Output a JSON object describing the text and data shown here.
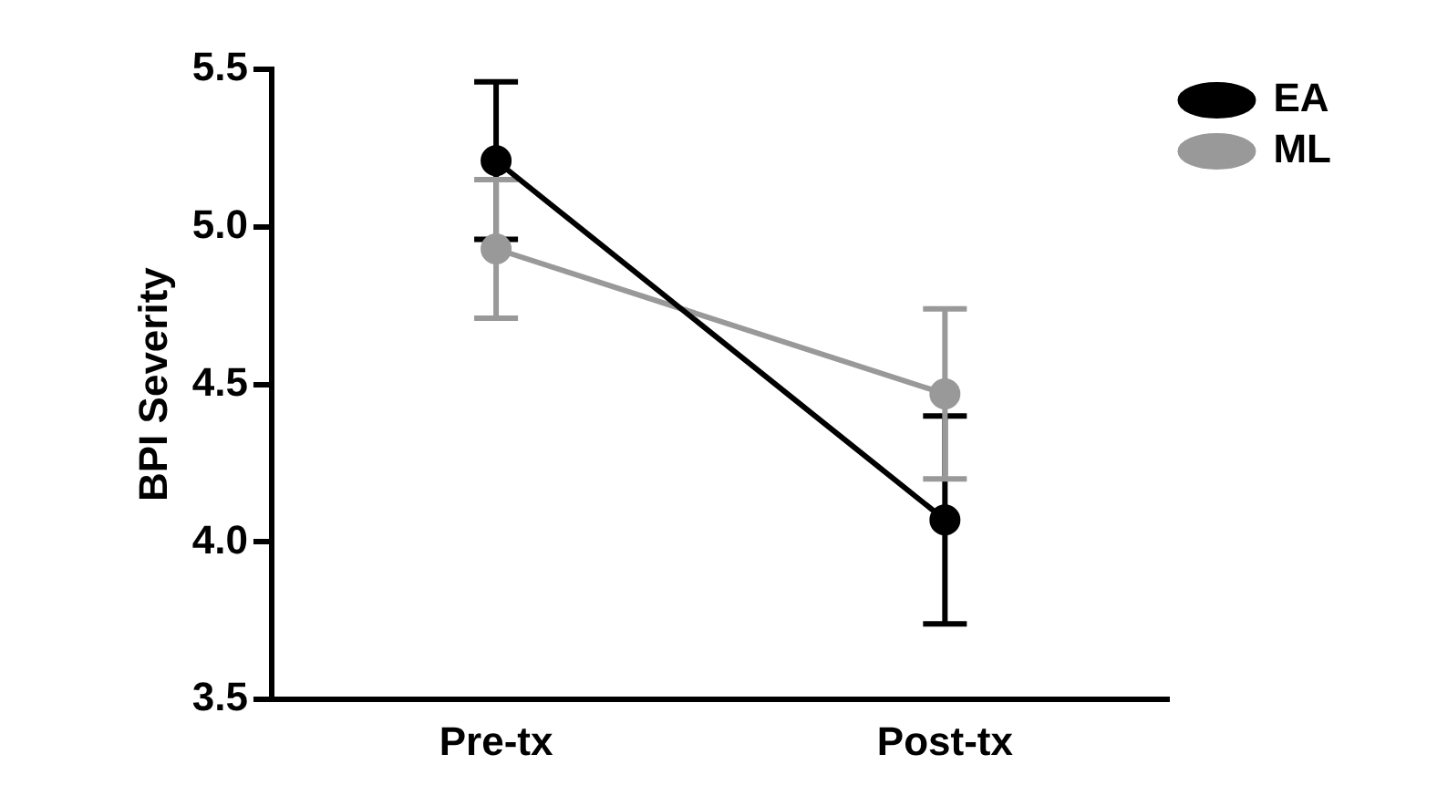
{
  "chart_data": {
    "type": "line",
    "ylabel": "BPI Severity",
    "categories": [
      "Pre-tx",
      "Post-tx"
    ],
    "series": [
      {
        "name": "EA",
        "color": "#000000",
        "values": [
          5.21,
          4.07
        ],
        "errors": [
          0.25,
          0.33
        ]
      },
      {
        "name": "ML",
        "color": "#999999",
        "values": [
          4.93,
          4.47
        ],
        "errors": [
          0.22,
          0.27
        ]
      }
    ],
    "ylim": [
      3.5,
      5.5
    ],
    "yticks": [
      {
        "value": 3.5,
        "label": "3.5"
      },
      {
        "value": 4.0,
        "label": "4.0"
      },
      {
        "value": 4.5,
        "label": "4.5"
      },
      {
        "value": 5.0,
        "label": "5.0"
      },
      {
        "value": 5.5,
        "label": "5.5"
      }
    ],
    "legend": "top right",
    "marker": "circle",
    "line_style": "solid"
  }
}
